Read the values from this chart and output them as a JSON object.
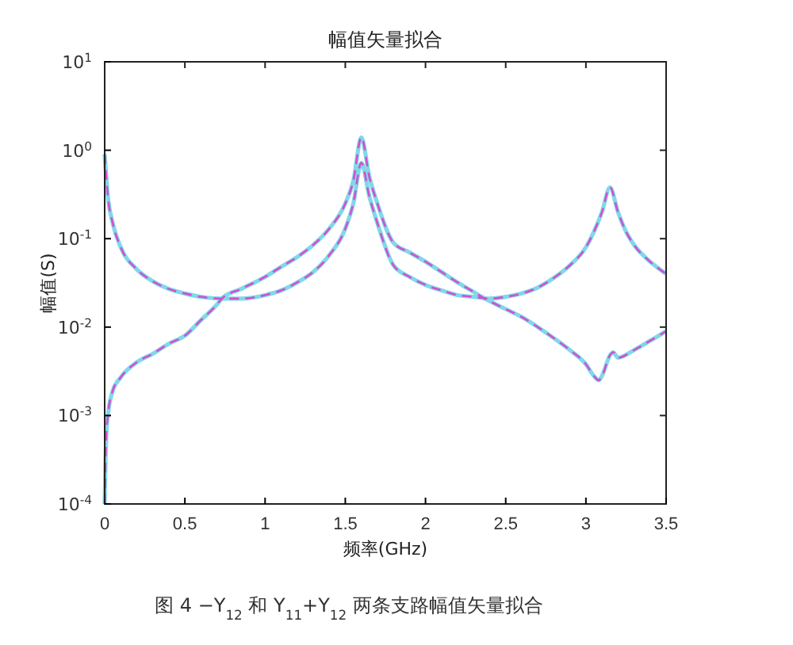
{
  "chart_data": {
    "type": "line",
    "title": "幅值矢量拟合",
    "xlabel": "频率(GHz)",
    "ylabel": "幅值(S)",
    "annotations": [
      "图 4  −Y$_{12}$ 和 Y$_{11}$+Y$_{12}$ 两条支路幅值矢量拟合"
    ],
    "log": "y",
    "grid": false,
    "marker": "none",
    "xlim": [
      0,
      3.5
    ],
    "xticks": [
      0,
      0.5,
      1,
      1.5,
      2,
      2.5,
      3,
      3.5
    ],
    "ylim": [
      0.0001,
      10
    ],
    "yticks": [
      {
        "value": 0.0001,
        "label": "10$^{-4}$"
      },
      {
        "value": 0.001,
        "label": "10$^{-3}$"
      },
      {
        "value": 0.01,
        "label": "10$^{-2}$"
      },
      {
        "value": 0.1,
        "label": "10$^{-1}$"
      },
      {
        "value": 1,
        "label": "10$^{0}$"
      },
      {
        "value": 10,
        "label": "10$^{1}$"
      }
    ],
    "series": [
      {
        "color": "#80d8e8",
        "line_style": "solid",
        "x": [
          0,
          0.02,
          0.05,
          0.1,
          0.2,
          0.3,
          0.4,
          0.5,
          0.6,
          0.73,
          0.85,
          1.0,
          1.1,
          1.2,
          1.3,
          1.4,
          1.5,
          1.55,
          1.6,
          1.65,
          1.7,
          1.8,
          1.9,
          2.0,
          2.1,
          2.2,
          2.3,
          2.4,
          2.5,
          2.6,
          2.7,
          2.8,
          2.9,
          3.0,
          3.05,
          3.1,
          3.15,
          3.2,
          3.25,
          3.3,
          3.4,
          3.5
        ],
        "values": [
          0.9,
          0.3,
          0.15,
          0.08,
          0.045,
          0.033,
          0.027,
          0.024,
          0.022,
          0.021,
          0.021,
          0.023,
          0.026,
          0.032,
          0.042,
          0.065,
          0.13,
          0.25,
          0.72,
          0.3,
          0.15,
          0.05,
          0.037,
          0.03,
          0.026,
          0.023,
          0.022,
          0.021,
          0.022,
          0.024,
          0.028,
          0.036,
          0.05,
          0.08,
          0.12,
          0.2,
          0.38,
          0.2,
          0.12,
          0.085,
          0.055,
          0.04
        ]
      },
      {
        "color": "#80d8e8",
        "line_style": "solid",
        "x": [
          0,
          0.005,
          0.01,
          0.02,
          0.05,
          0.1,
          0.2,
          0.3,
          0.4,
          0.5,
          0.6,
          0.7,
          0.73,
          0.85,
          1.0,
          1.1,
          1.2,
          1.3,
          1.4,
          1.5,
          1.55,
          1.6,
          1.65,
          1.7,
          1.8,
          1.9,
          2.0,
          2.1,
          2.2,
          2.3,
          2.35,
          2.5,
          2.6,
          2.7,
          2.8,
          2.9,
          3.0,
          3.05,
          3.08,
          3.1,
          3.15,
          3.17,
          3.2,
          3.3,
          3.4,
          3.5
        ],
        "values": [
          0.0001,
          0.0003,
          0.0006,
          0.001,
          0.0019,
          0.0027,
          0.004,
          0.005,
          0.0065,
          0.008,
          0.012,
          0.018,
          0.021,
          0.027,
          0.037,
          0.048,
          0.062,
          0.085,
          0.13,
          0.25,
          0.45,
          1.4,
          0.5,
          0.25,
          0.09,
          0.07,
          0.055,
          0.042,
          0.032,
          0.025,
          0.022,
          0.016,
          0.013,
          0.01,
          0.0075,
          0.0055,
          0.0038,
          0.0028,
          0.0025,
          0.0028,
          0.0048,
          0.0052,
          0.0045,
          0.0055,
          0.007,
          0.009
        ]
      },
      {
        "color": "#d050d0",
        "line_style": "dashed",
        "x": [
          0,
          0.02,
          0.05,
          0.1,
          0.2,
          0.3,
          0.4,
          0.5,
          0.6,
          0.73,
          0.85,
          1.0,
          1.1,
          1.2,
          1.3,
          1.4,
          1.5,
          1.55,
          1.6,
          1.65,
          1.7,
          1.8,
          1.9,
          2.0,
          2.1,
          2.2,
          2.3,
          2.4,
          2.5,
          2.6,
          2.7,
          2.8,
          2.9,
          3.0,
          3.05,
          3.1,
          3.15,
          3.2,
          3.25,
          3.3,
          3.4,
          3.5
        ],
        "values": [
          0.9,
          0.3,
          0.15,
          0.08,
          0.045,
          0.033,
          0.027,
          0.024,
          0.022,
          0.021,
          0.021,
          0.023,
          0.026,
          0.032,
          0.042,
          0.065,
          0.13,
          0.25,
          0.72,
          0.3,
          0.15,
          0.05,
          0.037,
          0.03,
          0.026,
          0.023,
          0.022,
          0.021,
          0.022,
          0.024,
          0.028,
          0.036,
          0.05,
          0.08,
          0.12,
          0.2,
          0.38,
          0.2,
          0.12,
          0.085,
          0.055,
          0.04
        ]
      },
      {
        "color": "#d050d0",
        "line_style": "dashed",
        "x": [
          0,
          0.005,
          0.01,
          0.02,
          0.05,
          0.1,
          0.2,
          0.3,
          0.4,
          0.5,
          0.6,
          0.7,
          0.73,
          0.85,
          1.0,
          1.1,
          1.2,
          1.3,
          1.4,
          1.5,
          1.55,
          1.6,
          1.65,
          1.7,
          1.8,
          1.9,
          2.0,
          2.1,
          2.2,
          2.3,
          2.35,
          2.5,
          2.6,
          2.7,
          2.8,
          2.9,
          3.0,
          3.05,
          3.08,
          3.1,
          3.15,
          3.17,
          3.2,
          3.3,
          3.4,
          3.5
        ],
        "values": [
          0.0001,
          0.0003,
          0.0006,
          0.001,
          0.0019,
          0.0027,
          0.004,
          0.005,
          0.0065,
          0.008,
          0.012,
          0.018,
          0.021,
          0.027,
          0.037,
          0.048,
          0.062,
          0.085,
          0.13,
          0.25,
          0.45,
          1.4,
          0.5,
          0.25,
          0.09,
          0.07,
          0.055,
          0.042,
          0.032,
          0.025,
          0.022,
          0.016,
          0.013,
          0.01,
          0.0075,
          0.0055,
          0.0038,
          0.0028,
          0.0025,
          0.0028,
          0.0048,
          0.0052,
          0.0045,
          0.0055,
          0.007,
          0.009
        ]
      }
    ]
  }
}
